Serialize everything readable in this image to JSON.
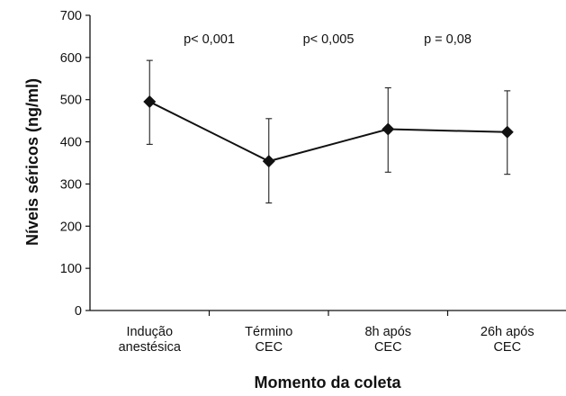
{
  "chart_data": {
    "type": "line",
    "xlabel": "Momento da coleta",
    "ylabel": "Níveis séricos (ng/ml)",
    "ylim": [
      0,
      700
    ],
    "yticks": [
      0,
      100,
      200,
      300,
      400,
      500,
      600,
      700
    ],
    "categories": [
      [
        "Indução",
        "anestésica"
      ],
      [
        "Término",
        "CEC"
      ],
      [
        "8h após",
        "CEC"
      ],
      [
        "26h após",
        "CEC"
      ]
    ],
    "series": [
      {
        "values": [
          495,
          354,
          430,
          423
        ],
        "error_upper": [
          593,
          455,
          528,
          521
        ],
        "error_lower": [
          394,
          255,
          328,
          323
        ],
        "marker": "diamond",
        "color": "#111111"
      }
    ],
    "annotations": [
      "p< 0,001",
      "p< 0,005",
      "p = 0,08"
    ],
    "grid": false,
    "legend": "none"
  }
}
